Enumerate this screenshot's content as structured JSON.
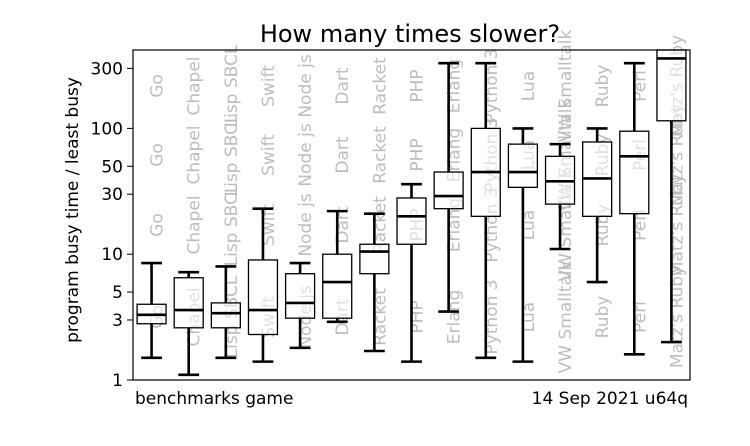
{
  "chart_data": {
    "type": "box",
    "title": "How many times slower?",
    "ylabel": "program busy time / least busy",
    "xlabel": "",
    "y_scale": "log",
    "ylim": [
      1,
      420
    ],
    "y_ticks": [
      1,
      3,
      5,
      10,
      30,
      50,
      100,
      300
    ],
    "footer_left": "benchmarks game",
    "footer_right": "14 Sep 2021 u64q",
    "categories": [
      "Go",
      "Chapel",
      "Lisp SBCL",
      "Swift",
      "Node js",
      "Dart",
      "Racket",
      "PHP",
      "Erlang",
      "Python 3",
      "Lua",
      "VW Smalltalk",
      "Ruby",
      "Perl",
      "Matz's Ruby"
    ],
    "boxes": [
      {
        "name": "Go",
        "whisker_low": 1.5,
        "q1": 2.8,
        "median": 3.3,
        "q3": 4.0,
        "whisker_high": 8.5
      },
      {
        "name": "Chapel",
        "whisker_low": 1.1,
        "q1": 2.6,
        "median": 3.6,
        "q3": 6.5,
        "whisker_high": 7.2
      },
      {
        "name": "Lisp SBCL",
        "whisker_low": 1.5,
        "q1": 2.6,
        "median": 3.4,
        "q3": 4.1,
        "whisker_high": 8.0
      },
      {
        "name": "Swift",
        "whisker_low": 1.4,
        "q1": 2.3,
        "median": 3.6,
        "q3": 9.0,
        "whisker_high": 23
      },
      {
        "name": "Node js",
        "whisker_low": 1.8,
        "q1": 3.1,
        "median": 4.1,
        "q3": 7.0,
        "whisker_high": 8.5
      },
      {
        "name": "Dart",
        "whisker_low": 2.9,
        "q1": 3.1,
        "median": 6.0,
        "q3": 10.0,
        "whisker_high": 22
      },
      {
        "name": "Racket",
        "whisker_low": 1.7,
        "q1": 7.0,
        "median": 10.5,
        "q3": 12.0,
        "whisker_high": 21
      },
      {
        "name": "PHP",
        "whisker_low": 1.4,
        "q1": 12,
        "median": 20,
        "q3": 28,
        "whisker_high": 36
      },
      {
        "name": "Erlang",
        "whisker_low": 3.5,
        "q1": 23,
        "median": 29,
        "q3": 45,
        "whisker_high": 330
      },
      {
        "name": "Python 3",
        "whisker_low": 1.5,
        "q1": 20,
        "median": 45,
        "q3": 100,
        "whisker_high": 330
      },
      {
        "name": "Lua",
        "whisker_low": 1.4,
        "q1": 34,
        "median": 45,
        "q3": 75,
        "whisker_high": 100
      },
      {
        "name": "VW Smalltalk",
        "whisker_low": 11,
        "q1": 25,
        "median": 38,
        "q3": 60,
        "whisker_high": 75
      },
      {
        "name": "Ruby",
        "whisker_low": 6,
        "q1": 20,
        "median": 40,
        "q3": 78,
        "whisker_high": 100
      },
      {
        "name": "Perl",
        "whisker_low": 1.6,
        "q1": 21,
        "median": 60,
        "q3": 95,
        "whisker_high": 330
      },
      {
        "name": "Matz's Ruby",
        "whisker_low": 2.0,
        "q1": 115,
        "median": 360,
        "q3": 420,
        "whisker_high": 420
      }
    ]
  }
}
